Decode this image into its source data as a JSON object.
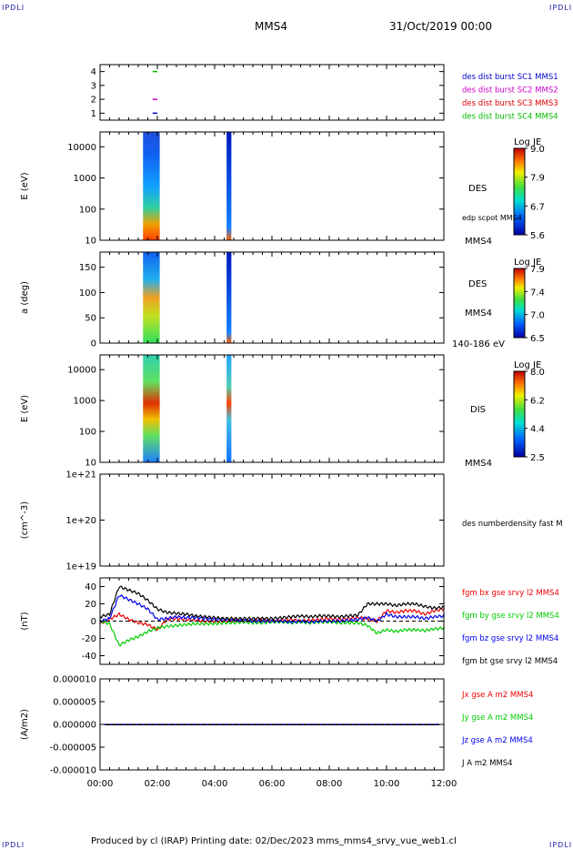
{
  "corners": {
    "tl": "IPDLI",
    "tr": "IPDLI",
    "bl": "IPDLI",
    "br": "IPDLI"
  },
  "header": {
    "spacecraft": "MMS4",
    "date": "31/Oct/2019 00:00"
  },
  "footer": {
    "text": "Produced by cl (IRAP)   Printing date: 02/Dec/2023   mms_mms4_srvy_vue_web1.cl"
  },
  "colors": {
    "mms1": "#0000cc",
    "mms2": "#cc00cc",
    "mms3": "#dd0000",
    "mms4": "#00bb00",
    "bx": "#ee0000",
    "by": "#00cc00",
    "bz": "#0000ee",
    "bt": "#000000"
  },
  "chart_data": [
    {
      "type": "scatter",
      "name": "burst-availability",
      "yticks": [
        "1",
        "2",
        "3",
        "4"
      ],
      "ylim": [
        0.5,
        4.5
      ],
      "xlim": [
        "00:00",
        "12:00"
      ],
      "legend": [
        "des dist burst SC1 MMS1",
        "des dist burst SC2 MMS2",
        "des dist burst SC3 MMS3",
        "des dist burst SC4 MMS4"
      ],
      "points": [
        {
          "y": 1,
          "x": [
            "01:50",
            "02:00"
          ]
        },
        {
          "y": 2,
          "x": [
            "01:50",
            "02:00"
          ]
        },
        {
          "y": 4,
          "x": [
            "01:50",
            "02:00"
          ]
        }
      ]
    },
    {
      "type": "heatmap",
      "name": "des-energy-spectrogram",
      "ylabel": "E (eV)",
      "yticks": [
        "10",
        "100",
        "1000",
        "10000"
      ],
      "ylim": [
        10,
        30000
      ],
      "scale": "log",
      "right_labels": [
        "DES",
        "edp scpot MMS4",
        "MMS4"
      ],
      "colorbar": {
        "label": "Log JE",
        "ticks": [
          "9.0",
          "7.9",
          "6.7",
          "5.6"
        ],
        "range": [
          5.6,
          9.0
        ]
      },
      "intervals": [
        [
          "01:30",
          "02:05"
        ],
        [
          "04:25",
          "04:35"
        ]
      ]
    },
    {
      "type": "heatmap",
      "name": "des-pitch-angle",
      "ylabel": "a (deg)",
      "yticks": [
        "0",
        "50",
        "100",
        "150"
      ],
      "ylim": [
        0,
        180
      ],
      "right_labels": [
        "DES",
        "MMS4",
        "140-186 eV"
      ],
      "colorbar": {
        "label": "Log JE",
        "ticks": [
          "7.9",
          "7.4",
          "7.0",
          "6.5"
        ],
        "range": [
          6.5,
          7.9
        ]
      },
      "intervals": [
        [
          "01:30",
          "02:05"
        ],
        [
          "04:25",
          "04:35"
        ]
      ]
    },
    {
      "type": "heatmap",
      "name": "dis-energy-spectrogram",
      "ylabel": "E (eV)",
      "yticks": [
        "10",
        "100",
        "1000",
        "10000"
      ],
      "ylim": [
        10,
        30000
      ],
      "scale": "log",
      "right_labels": [
        "DIS",
        "MMS4"
      ],
      "colorbar": {
        "label": "Log JE",
        "ticks": [
          "8.0",
          "6.2",
          "4.4",
          "2.5"
        ],
        "range": [
          2.5,
          8.0
        ]
      },
      "intervals": [
        [
          "01:30",
          "02:05"
        ],
        [
          "04:25",
          "04:35"
        ]
      ]
    },
    {
      "type": "line",
      "name": "density",
      "ylabel": "(cm^-3)",
      "yticks": [
        "1e+19",
        "1e+20",
        "1e+21"
      ],
      "ylim": [
        1e+19,
        1e+21
      ],
      "scale": "log",
      "legend": [
        "des numberdensity fast M"
      ],
      "series": []
    },
    {
      "type": "line",
      "name": "magnetic-field",
      "ylabel": "(nT)",
      "yticks": [
        "-40",
        "-20",
        "0",
        "20",
        "40"
      ],
      "ylim": [
        -50,
        50
      ],
      "legend": [
        "fgm bx gse srvy l2 MMS4",
        "fgm by gse srvy l2 MMS4",
        "fgm bz gse srvy l2 MMS4",
        "fgm bt gse srvy l2 MMS4"
      ],
      "x": [
        "00:00",
        "00:20",
        "00:40",
        "01:00",
        "01:20",
        "01:40",
        "02:00",
        "02:20",
        "02:40",
        "03:00",
        "03:20",
        "03:40",
        "04:00",
        "04:20",
        "04:40",
        "05:00",
        "05:20",
        "05:40",
        "06:00",
        "06:20",
        "06:40",
        "07:00",
        "07:20",
        "07:40",
        "08:00",
        "08:20",
        "08:40",
        "09:00",
        "09:20",
        "09:40",
        "10:00",
        "10:20",
        "10:40",
        "11:00",
        "11:20",
        "11:40",
        "12:00"
      ],
      "series": [
        {
          "name": "fgm bx gse srvy l2 MMS4",
          "values": [
            -3,
            2,
            8,
            2,
            -2,
            -4,
            -10,
            2,
            3,
            2,
            1,
            0,
            0,
            0,
            1,
            0,
            1,
            2,
            0,
            1,
            2,
            0,
            1,
            2,
            3,
            2,
            3,
            4,
            3,
            0,
            12,
            10,
            12,
            12,
            8,
            12,
            14
          ]
        },
        {
          "name": "fgm by gse srvy l2 MMS4",
          "values": [
            0,
            -3,
            -28,
            -22,
            -18,
            -12,
            -8,
            -6,
            -5,
            -4,
            -3,
            -3,
            -3,
            -2,
            -2,
            -1,
            -2,
            -2,
            -1,
            -1,
            -2,
            -1,
            -2,
            -1,
            -1,
            -2,
            -2,
            -2,
            -5,
            -14,
            -10,
            -12,
            -10,
            -10,
            -11,
            -9,
            -8
          ]
        },
        {
          "name": "fgm bz gse srvy l2 MMS4",
          "values": [
            0,
            3,
            30,
            25,
            20,
            14,
            2,
            3,
            5,
            4,
            4,
            3,
            2,
            2,
            1,
            1,
            0,
            0,
            0,
            0,
            -1,
            0,
            -1,
            0,
            0,
            0,
            1,
            2,
            4,
            0,
            8,
            5,
            5,
            5,
            3,
            5,
            6
          ]
        },
        {
          "name": "fgm bt gse srvy l2 MMS4",
          "values": [
            5,
            8,
            40,
            36,
            32,
            24,
            14,
            10,
            9,
            8,
            6,
            5,
            4,
            3,
            3,
            3,
            3,
            3,
            3,
            4,
            5,
            6,
            5,
            6,
            6,
            5,
            6,
            7,
            20,
            20,
            20,
            18,
            20,
            20,
            17,
            15,
            16
          ]
        }
      ]
    },
    {
      "type": "line",
      "name": "current-density",
      "ylabel": "(A/m2)",
      "yticks": [
        "-0.000010",
        "-0.000005",
        "0.000000",
        "0.000005",
        "0.000010"
      ],
      "ylim": [
        -1e-05,
        1e-05
      ],
      "legend": [
        "Jx gse A m2 MMS4",
        "Jy gse A m2 MMS4",
        "Jz gse A m2 MMS4",
        "J A m2 MMS4"
      ],
      "series": [
        {
          "name": "Jx gse A m2 MMS4",
          "values": [
            0,
            0,
            0,
            0,
            0,
            0,
            0
          ]
        },
        {
          "name": "Jy gse A m2 MMS4",
          "values": [
            0,
            0,
            0,
            0,
            0,
            0,
            0
          ]
        },
        {
          "name": "Jz gse A m2 MMS4",
          "values": [
            0,
            0,
            0,
            0,
            0,
            0,
            0
          ]
        }
      ]
    }
  ],
  "xaxis": {
    "ticks": [
      "00:00",
      "02:00",
      "04:00",
      "06:00",
      "08:00",
      "10:00",
      "12:00"
    ]
  }
}
